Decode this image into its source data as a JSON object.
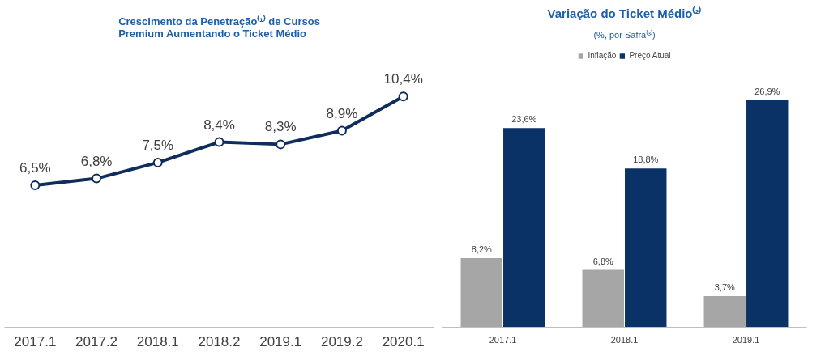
{
  "chart_data": [
    {
      "type": "line",
      "title": "Crescimento da Penetração⁽¹⁾ de Cursos Premium Aumentando o Ticket Médio",
      "categories": [
        "2017.1",
        "2017.2",
        "2018.1",
        "2018.2",
        "2019.1",
        "2019.2",
        "2020.1"
      ],
      "series": [
        {
          "color": "#0f2d5c",
          "values": [
            6.5,
            6.8,
            7.5,
            8.4,
            8.3,
            8.9,
            10.4
          ],
          "value_labels": [
            "6,5%",
            "6,8%",
            "7,5%",
            "8,4%",
            "8,3%",
            "8,9%",
            "10,4%"
          ]
        }
      ],
      "marker": "circle",
      "line_style": "solid",
      "grid": false
    },
    {
      "type": "bar",
      "title": "Variação do Ticket Médio⁽²⁾",
      "subtitle": "(%, por Safra⁽³⁾)",
      "categories": [
        "2017.1",
        "2018.1",
        "2019.1"
      ],
      "series": [
        {
          "name": "Inflação",
          "color": "#a6a6a6",
          "values": [
            8.2,
            6.8,
            3.7
          ],
          "value_labels": [
            "8,2%",
            "6,8%",
            "3,7%"
          ]
        },
        {
          "name": "Preço Atual",
          "color": "#0b3266",
          "values": [
            23.6,
            18.8,
            26.9
          ],
          "value_labels": [
            "23,6%",
            "18,8%",
            "26,9%"
          ]
        }
      ],
      "legend": "top",
      "grid": false
    }
  ]
}
